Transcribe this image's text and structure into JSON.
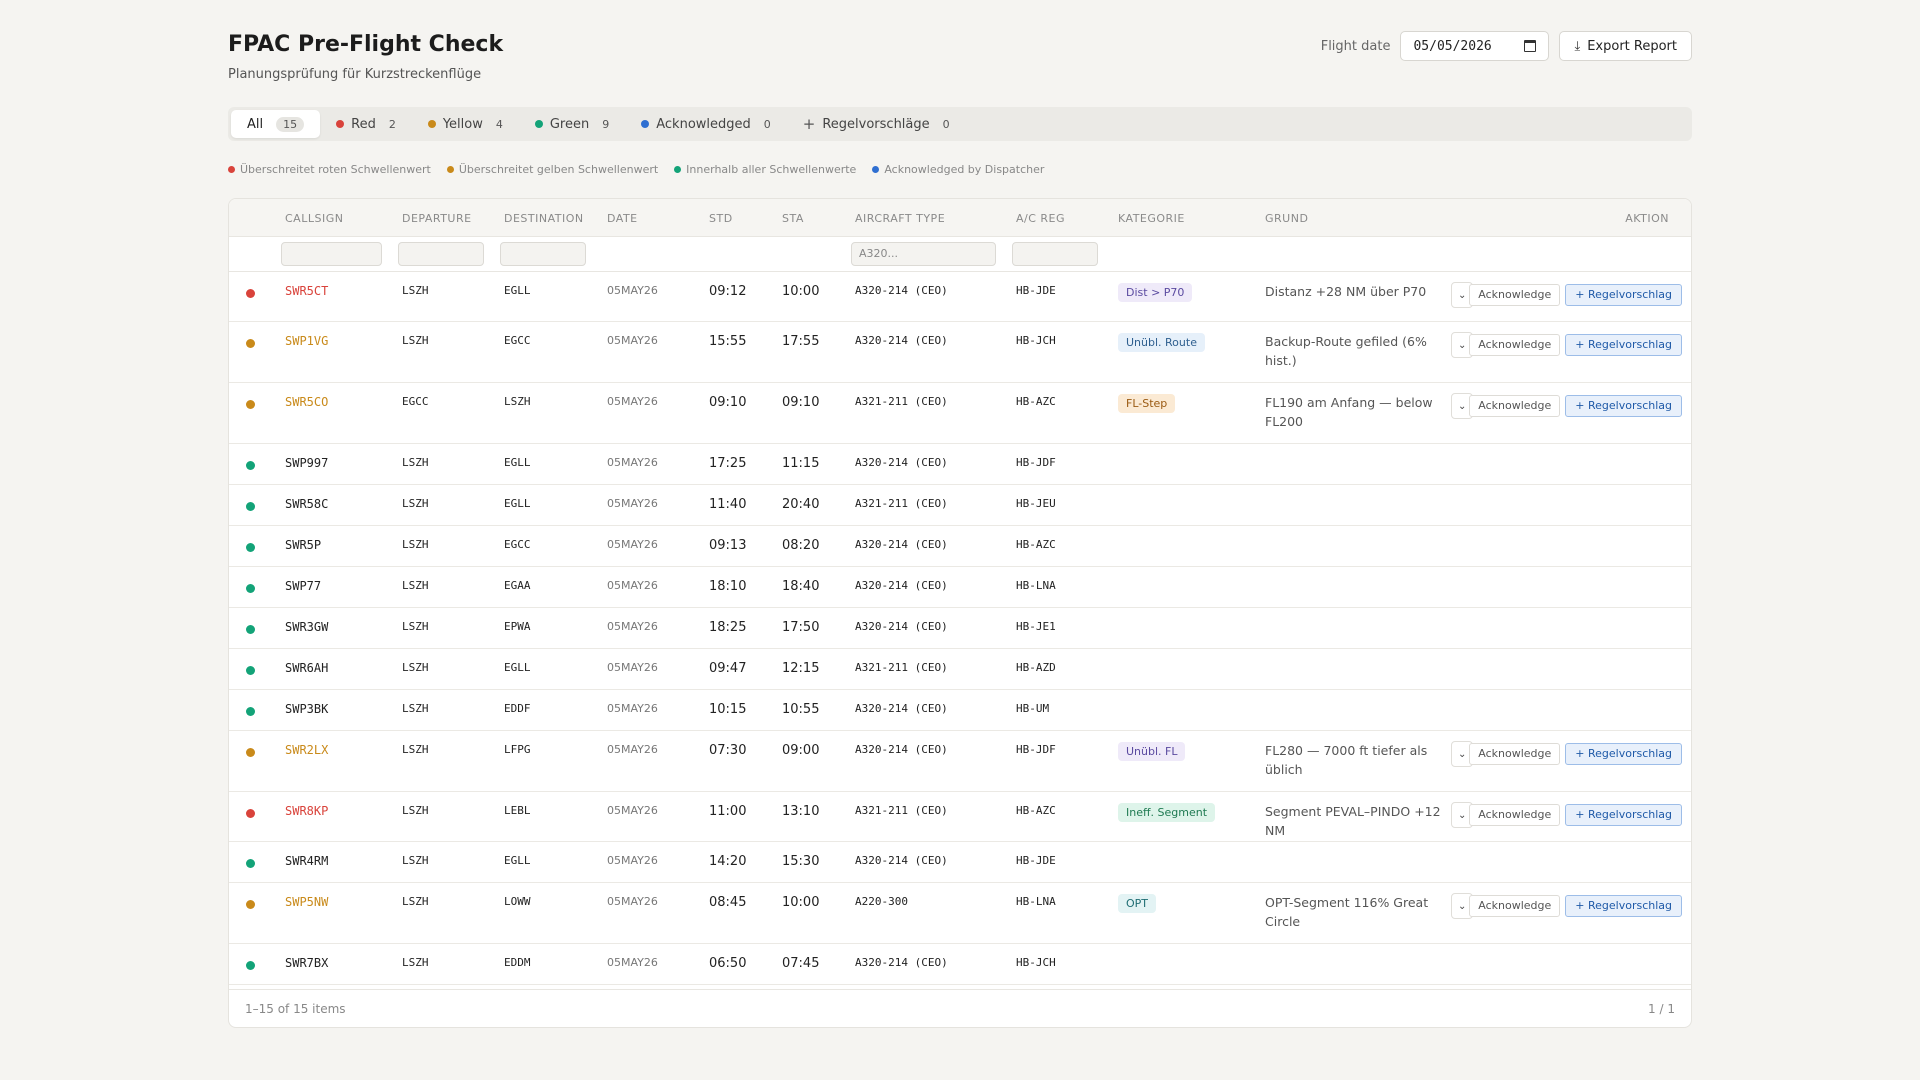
{
  "header": {
    "title": "FPAC Pre-Flight Check",
    "subtitle": "Planungsprüfung für Kurzstreckenflüge",
    "date_label": "Flight date",
    "date_value": "05/05/2026",
    "export_label": "Export Report"
  },
  "tabs": [
    {
      "label": "All",
      "count": "15",
      "color": ""
    },
    {
      "label": "Red",
      "count": "2",
      "color": "#d9433b"
    },
    {
      "label": "Yellow",
      "count": "4",
      "color": "#c98a1a"
    },
    {
      "label": "Green",
      "count": "9",
      "color": "#13a378"
    },
    {
      "label": "Acknowledged",
      "count": "0",
      "color": "#2f6fd1"
    },
    {
      "label": "Regelvorschläge",
      "count": "0",
      "color": ""
    }
  ],
  "legend": [
    {
      "label": "Überschreitet roten Schwellenwert",
      "color": "#d9433b"
    },
    {
      "label": "Überschreitet gelben Schwellenwert",
      "color": "#c98a1a"
    },
    {
      "label": "Innerhalb aller Schwellenwerte",
      "color": "#13a378"
    },
    {
      "label": "Acknowledged by Dispatcher",
      "color": "#2f6fd1"
    }
  ],
  "table": {
    "columns": [
      "CALLSIGN",
      "DEPARTURE",
      "DESTINATION",
      "DATE",
      "STD",
      "STA",
      "AIRCRAFT TYPE",
      "A/C REG",
      "KATEGORIE",
      "GRUND",
      "AKTION"
    ],
    "aircraft_filter_placeholder": "A320...",
    "ack_label": "Acknowledge",
    "rule_label": "+ Regelvorschlag",
    "rows": [
      {
        "status": "red",
        "callsign": "SWR5CT",
        "dep": "LSZH",
        "dest": "EGLL",
        "date": "05MAY26",
        "std": "09:12",
        "sta": "10:00",
        "type": "A320-214 (CEO)",
        "reg": "HB-JDE",
        "kategorie": "Dist > P70",
        "kat_style": "purple",
        "grund": "Distanz +28 NM über P70"
      },
      {
        "status": "yellow",
        "callsign": "SWP1VG",
        "dep": "LSZH",
        "dest": "EGCC",
        "date": "05MAY26",
        "std": "15:55",
        "sta": "17:55",
        "type": "A320-214 (CEO)",
        "reg": "HB-JCH",
        "kategorie": "Unübl. Route",
        "kat_style": "blue",
        "grund": "Backup-Route gefiled (6% hist.)"
      },
      {
        "status": "yellow",
        "callsign": "SWR5CO",
        "dep": "EGCC",
        "dest": "LSZH",
        "date": "05MAY26",
        "std": "09:10",
        "sta": "09:10",
        "type": "A321-211 (CEO)",
        "reg": "HB-AZC",
        "kategorie": "FL-Step",
        "kat_style": "orange",
        "grund": "FL190 am Anfang — below FL200"
      },
      {
        "status": "green",
        "callsign": "SWP997",
        "dep": "LSZH",
        "dest": "EGLL",
        "date": "05MAY26",
        "std": "17:25",
        "sta": "11:15",
        "type": "A320-214 (CEO)",
        "reg": "HB-JDF",
        "kategorie": "",
        "kat_style": "",
        "grund": ""
      },
      {
        "status": "green",
        "callsign": "SWR58C",
        "dep": "LSZH",
        "dest": "EGLL",
        "date": "05MAY26",
        "std": "11:40",
        "sta": "20:40",
        "type": "A321-211 (CEO)",
        "reg": "HB-JEU",
        "kategorie": "",
        "kat_style": "",
        "grund": ""
      },
      {
        "status": "green",
        "callsign": "SWR5P",
        "dep": "LSZH",
        "dest": "EGCC",
        "date": "05MAY26",
        "std": "09:13",
        "sta": "08:20",
        "type": "A320-214 (CEO)",
        "reg": "HB-AZC",
        "kategorie": "",
        "kat_style": "",
        "grund": ""
      },
      {
        "status": "green",
        "callsign": "SWP77",
        "dep": "LSZH",
        "dest": "EGAA",
        "date": "05MAY26",
        "std": "18:10",
        "sta": "18:40",
        "type": "A320-214 (CEO)",
        "reg": "HB-LNA",
        "kategorie": "",
        "kat_style": "",
        "grund": ""
      },
      {
        "status": "green",
        "callsign": "SWR3GW",
        "dep": "LSZH",
        "dest": "EPWA",
        "date": "05MAY26",
        "std": "18:25",
        "sta": "17:50",
        "type": "A320-214 (CEO)",
        "reg": "HB-JE1",
        "kategorie": "",
        "kat_style": "",
        "grund": ""
      },
      {
        "status": "green",
        "callsign": "SWR6AH",
        "dep": "LSZH",
        "dest": "EGLL",
        "date": "05MAY26",
        "std": "09:47",
        "sta": "12:15",
        "type": "A321-211 (CEO)",
        "reg": "HB-AZD",
        "kategorie": "",
        "kat_style": "",
        "grund": ""
      },
      {
        "status": "green",
        "callsign": "SWP3BK",
        "dep": "LSZH",
        "dest": "EDDF",
        "date": "05MAY26",
        "std": "10:15",
        "sta": "10:55",
        "type": "A320-214 (CEO)",
        "reg": "HB-UM",
        "kategorie": "",
        "kat_style": "",
        "grund": ""
      },
      {
        "status": "yellow",
        "callsign": "SWR2LX",
        "dep": "LSZH",
        "dest": "LFPG",
        "date": "05MAY26",
        "std": "07:30",
        "sta": "09:00",
        "type": "A320-214 (CEO)",
        "reg": "HB-JDF",
        "kategorie": "Unübl. FL",
        "kat_style": "purple",
        "grund": "FL280 — 7000 ft tiefer als üblich"
      },
      {
        "status": "red",
        "callsign": "SWR8KP",
        "dep": "LSZH",
        "dest": "LEBL",
        "date": "05MAY26",
        "std": "11:00",
        "sta": "13:10",
        "type": "A321-211 (CEO)",
        "reg": "HB-AZC",
        "kategorie": "Ineff. Segment",
        "kat_style": "green",
        "grund": "Segment PEVAL–PINDO +12 NM"
      },
      {
        "status": "green",
        "callsign": "SWR4RM",
        "dep": "LSZH",
        "dest": "EGLL",
        "date": "05MAY26",
        "std": "14:20",
        "sta": "15:30",
        "type": "A320-214 (CEO)",
        "reg": "HB-JDE",
        "kategorie": "",
        "kat_style": "",
        "grund": ""
      },
      {
        "status": "yellow",
        "callsign": "SWP5NW",
        "dep": "LSZH",
        "dest": "LOWW",
        "date": "05MAY26",
        "std": "08:45",
        "sta": "10:00",
        "type": "A220-300",
        "reg": "HB-LNA",
        "kategorie": "OPT",
        "kat_style": "teal",
        "grund": "OPT-Segment 116% Great Circle"
      },
      {
        "status": "green",
        "callsign": "SWR7BX",
        "dep": "LSZH",
        "dest": "EDDM",
        "date": "05MAY26",
        "std": "06:50",
        "sta": "07:45",
        "type": "A320-214 (CEO)",
        "reg": "HB-JCH",
        "kategorie": "",
        "kat_style": "",
        "grund": ""
      }
    ]
  },
  "footer": {
    "range": "1–15 of 15 items",
    "page": "1 / 1"
  },
  "colors": {
    "red": "#d9433b",
    "yellow": "#c98a1a",
    "green": "#13a378",
    "blue": "#2f6fd1"
  }
}
